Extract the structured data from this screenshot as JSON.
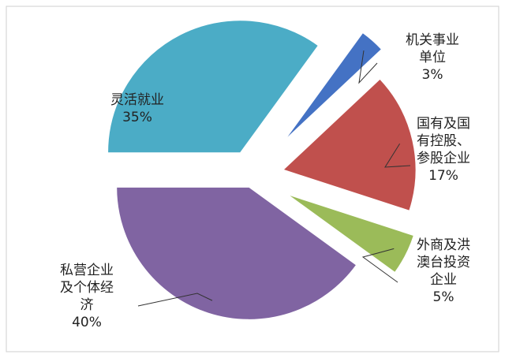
{
  "chart_data": {
    "type": "pie",
    "exploded": true,
    "legend": "none",
    "slices": [
      {
        "label_lines": [
          "机关事业",
          "单位"
        ],
        "percent_label": "3%",
        "value": 3,
        "color": "#4472C4"
      },
      {
        "label_lines": [
          "国有及国",
          "有控股、",
          "参股企业"
        ],
        "percent_label": "17%",
        "value": 17,
        "color": "#C0504D"
      },
      {
        "label_lines": [
          "外商及洪",
          "澳台投资",
          "企业"
        ],
        "percent_label": "5%",
        "value": 5,
        "color": "#9BBB59"
      },
      {
        "label_lines": [
          "私营企业",
          "及个体经",
          "济"
        ],
        "percent_label": "40%",
        "value": 40,
        "color": "#8064A2"
      },
      {
        "label_lines": [
          "灵活就业"
        ],
        "percent_label": "35%",
        "value": 35,
        "color": "#4BACC6"
      }
    ]
  }
}
